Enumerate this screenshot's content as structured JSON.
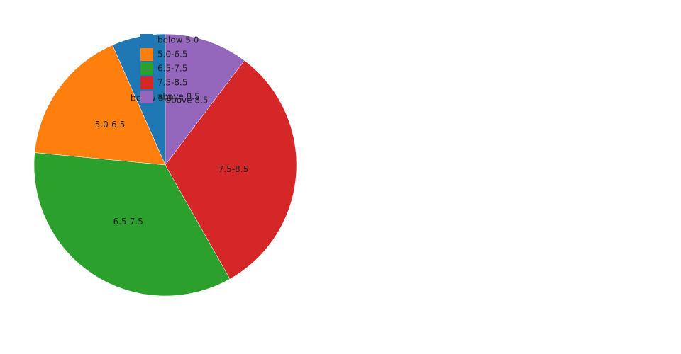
{
  "chart_data": {
    "type": "pie",
    "categories": [
      "below 5.0",
      "5.0-6.5",
      "6.5-7.5",
      "7.5-8.5",
      "above 8.5"
    ],
    "values": [
      6.6,
      16.9,
      34.7,
      31.5,
      10.3
    ],
    "colors": [
      "#1f77b4",
      "#ff7f0e",
      "#2ca02c",
      "#d62728",
      "#9467bd"
    ],
    "direction": "counterclockwise",
    "legend": "top-left"
  }
}
